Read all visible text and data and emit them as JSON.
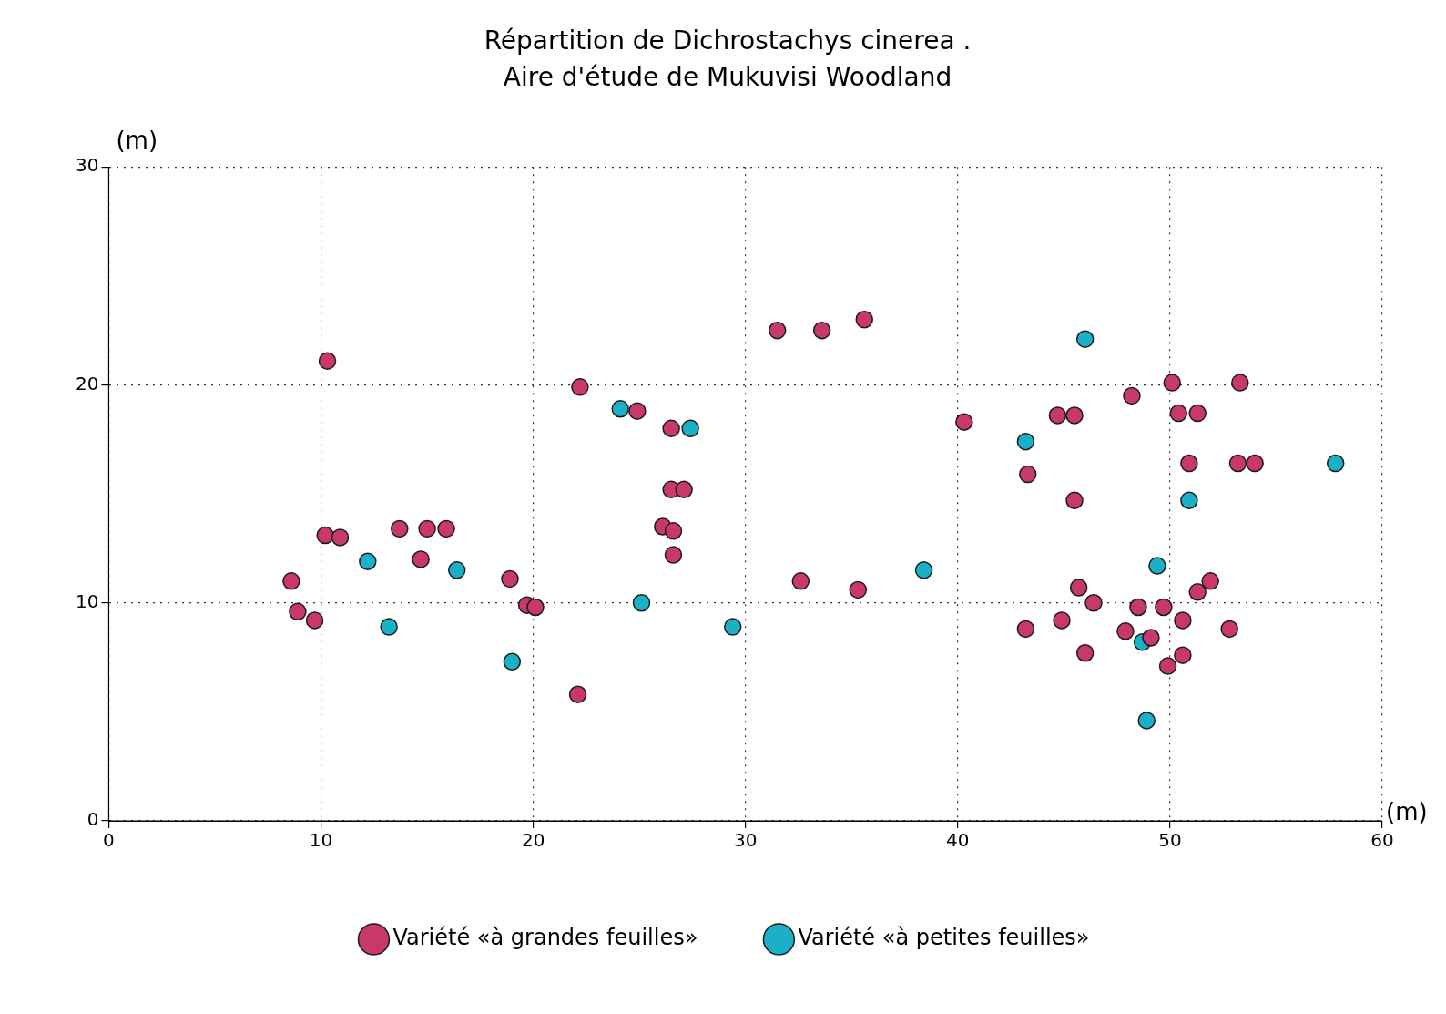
{
  "chart_data": {
    "type": "scatter",
    "title": "Répartition de Dichrostachys cinerea .",
    "subtitle": "Aire d'étude de Mukuvisi Woodland",
    "xlabel": "(m)",
    "ylabel": "(m)",
    "xlim": [
      0,
      60
    ],
    "ylim": [
      0,
      30
    ],
    "xticks": [
      0,
      10,
      20,
      30,
      40,
      50,
      60
    ],
    "yticks": [
      0,
      10,
      20,
      30
    ],
    "grid": true,
    "legend": "bottom",
    "marker": "circle",
    "series": [
      {
        "name": "Variété «à grandes feuilles»",
        "color": "#c8386a",
        "x": [
          10.3,
          8.6,
          8.9,
          9.7,
          10.2,
          10.9,
          13.7,
          14.7,
          15.0,
          15.9,
          18.9,
          19.7,
          20.1,
          22.2,
          22.1,
          24.9,
          26.5,
          26.5,
          27.1,
          26.1,
          26.6,
          26.6,
          31.5,
          33.6,
          35.6,
          32.6,
          35.3,
          40.3,
          43.3,
          43.2,
          44.7,
          45.5,
          45.5,
          48.2,
          45.7,
          46.4,
          46.0,
          44.9,
          48.5,
          47.9,
          49.1,
          49.7,
          50.1,
          50.4,
          51.3,
          50.9,
          50.6,
          50.6,
          49.9,
          51.3,
          51.9,
          52.8,
          53.2,
          54.0,
          53.3
        ],
        "values": [
          21.1,
          11.0,
          9.6,
          9.2,
          13.1,
          13.0,
          13.4,
          12.0,
          13.4,
          13.4,
          11.1,
          9.9,
          9.8,
          19.9,
          5.8,
          18.8,
          18.0,
          15.2,
          15.2,
          13.5,
          13.3,
          12.2,
          22.5,
          22.5,
          23.0,
          11.0,
          10.6,
          18.3,
          15.9,
          8.8,
          18.6,
          18.6,
          14.7,
          19.5,
          10.7,
          10.0,
          7.7,
          9.2,
          9.8,
          8.7,
          8.4,
          9.8,
          20.1,
          18.7,
          18.7,
          16.4,
          9.2,
          7.6,
          7.1,
          10.5,
          11.0,
          8.8,
          16.4,
          16.4,
          20.1
        ]
      },
      {
        "name": "Variété «à petites feuilles»",
        "color": "#1ab0c8",
        "x": [
          12.2,
          13.2,
          16.4,
          19.0,
          24.1,
          25.1,
          27.4,
          29.4,
          38.4,
          43.2,
          46.0,
          49.4,
          48.7,
          48.9,
          50.9,
          57.8
        ],
        "values": [
          11.9,
          8.9,
          11.5,
          7.3,
          18.9,
          10.0,
          18.0,
          8.9,
          11.5,
          17.4,
          22.1,
          11.7,
          8.2,
          4.6,
          14.7,
          16.4
        ]
      }
    ]
  }
}
